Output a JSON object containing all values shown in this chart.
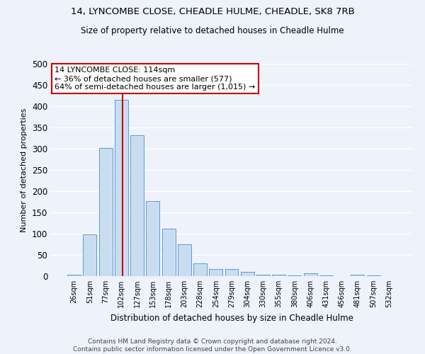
{
  "title_line1": "14, LYNCOMBE CLOSE, CHEADLE HULME, CHEADLE, SK8 7RB",
  "title_line2": "Size of property relative to detached houses in Cheadle Hulme",
  "xlabel": "Distribution of detached houses by size in Cheadle Hulme",
  "ylabel": "Number of detached properties",
  "bar_color": "#c9ddf0",
  "bar_edge_color": "#5b9bd5",
  "categories": [
    "26sqm",
    "51sqm",
    "77sqm",
    "102sqm",
    "127sqm",
    "153sqm",
    "178sqm",
    "203sqm",
    "228sqm",
    "254sqm",
    "279sqm",
    "304sqm",
    "330sqm",
    "355sqm",
    "380sqm",
    "406sqm",
    "431sqm",
    "456sqm",
    "481sqm",
    "507sqm",
    "532sqm"
  ],
  "values": [
    4,
    99,
    302,
    415,
    332,
    176,
    111,
    75,
    30,
    16,
    16,
    10,
    4,
    4,
    2,
    6,
    1,
    0,
    3,
    1,
    0
  ],
  "ylim": [
    0,
    500
  ],
  "yticks": [
    0,
    50,
    100,
    150,
    200,
    250,
    300,
    350,
    400,
    450,
    500
  ],
  "annotation_title": "14 LYNCOMBE CLOSE: 114sqm",
  "annotation_line1": "← 36% of detached houses are smaller (577)",
  "annotation_line2": "64% of semi-detached houses are larger (1,015) →",
  "annotation_box_color": "#ffffff",
  "annotation_border_color": "#cc0000",
  "vline_color": "#cc0000",
  "vline_x_index": 3.07,
  "footer_line1": "Contains HM Land Registry data © Crown copyright and database right 2024.",
  "footer_line2": "Contains public sector information licensed under the Open Government Licence v3.0.",
  "bg_color": "#eef2fb",
  "plot_bg_color": "#eef2fb",
  "grid_color": "#ffffff"
}
